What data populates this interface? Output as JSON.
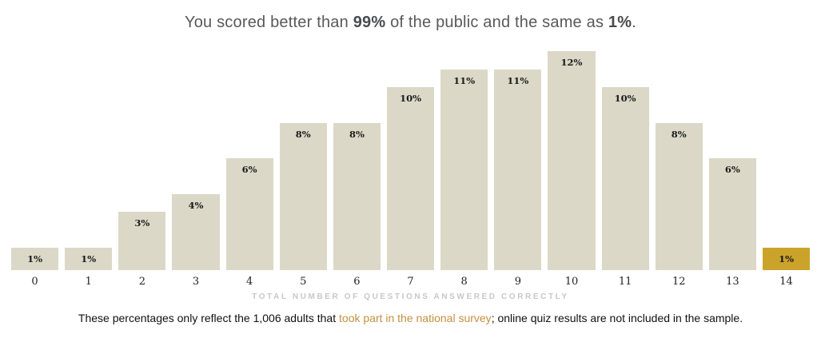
{
  "title": {
    "prefix": "You scored better than ",
    "better_pct": "99%",
    "middle": " of the public and the same as ",
    "same_pct": "1%",
    "suffix": "."
  },
  "chart_data": {
    "type": "bar",
    "title": "You scored better than 99% of the public and the same as 1%.",
    "xlabel": "TOTAL NUMBER OF QUESTIONS ANSWERED CORRECTLY",
    "ylabel": "",
    "categories": [
      "0",
      "1",
      "2",
      "3",
      "4",
      "5",
      "6",
      "7",
      "8",
      "9",
      "10",
      "11",
      "12",
      "13",
      "14"
    ],
    "values": [
      1,
      1,
      3,
      4,
      6,
      8,
      8,
      10,
      11,
      11,
      12,
      10,
      8,
      6,
      1
    ],
    "value_labels": [
      "1%",
      "1%",
      "3%",
      "4%",
      "6%",
      "8%",
      "8%",
      "10%",
      "11%",
      "11%",
      "12%",
      "10%",
      "8%",
      "6%",
      "1%"
    ],
    "highlight_index": 14,
    "bar_color": "#dbd8c7",
    "highlight_color": "#cba32b",
    "ylim": [
      0,
      12
    ],
    "grid": false,
    "legend": "none"
  },
  "footer": {
    "pre_link": "These percentages only reflect the 1,006 adults that ",
    "link_text": "took part in the national survey",
    "post_link": "; online quiz results are not included in the sample."
  }
}
